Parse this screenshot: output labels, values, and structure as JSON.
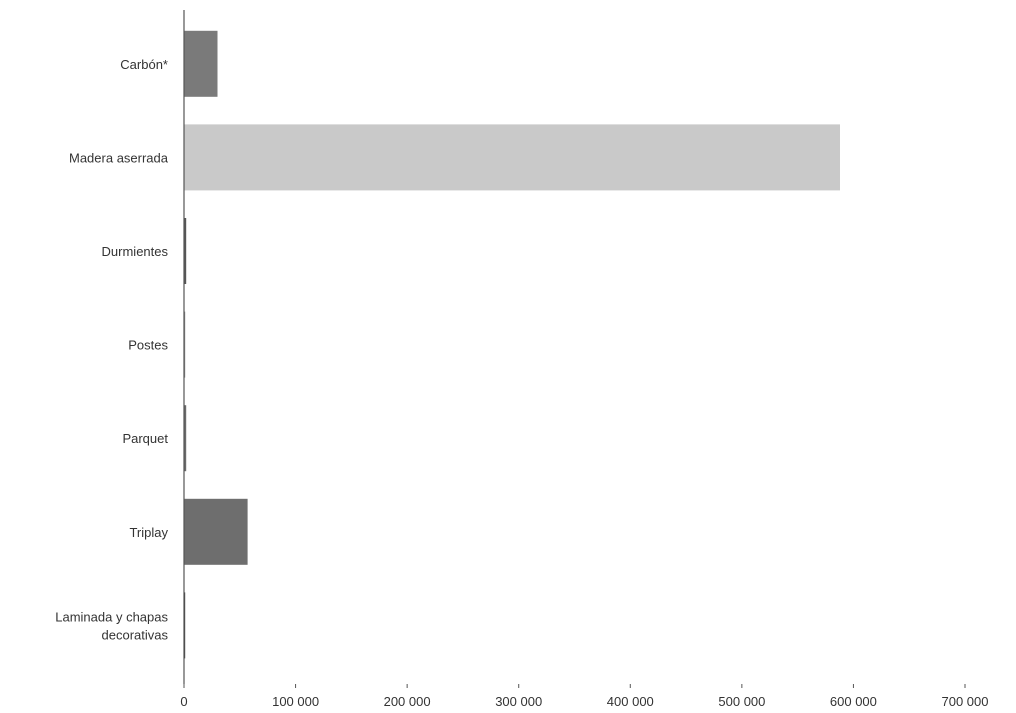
{
  "chart_data": {
    "type": "bar",
    "orientation": "horizontal",
    "categories": [
      "Carbón*",
      "Madera aserrada",
      "Durmientes",
      "Postes",
      "Parquet",
      "Triplay",
      "Laminada y chapas decorativas"
    ],
    "values": [
      30000,
      588000,
      2000,
      1000,
      2000,
      57000,
      500
    ],
    "xlim": [
      0,
      700000
    ],
    "xticks": [
      0,
      100000,
      200000,
      300000,
      400000,
      500000,
      600000,
      700000
    ],
    "xtick_labels": [
      "0",
      "100 000",
      "200 000",
      "300 000",
      "400 000",
      "500 000",
      "600 000",
      "700 000"
    ],
    "grid": false,
    "legend": "none",
    "colors": {
      "Carbón*": "#7a7a7a",
      "Madera aserrada": "#c9c9c9",
      "Durmientes": "#555555",
      "Postes": "#8a8a8a",
      "Parquet": "#6a6a6a",
      "Triplay": "#6e6e6e",
      "Laminada y chapas decorativas": "#444444"
    },
    "axis_color": "#555555"
  }
}
